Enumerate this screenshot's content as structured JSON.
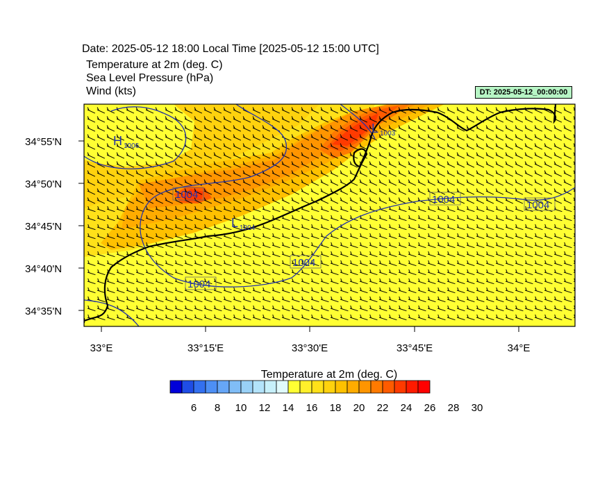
{
  "header": {
    "date_line": "Date: 2025-05-12  18:00 Local Time [2025-05-12  15:00 UTC]",
    "field1": "Temperature at 2m   (deg. C)",
    "field2": "Sea Level Pressure   (hPa)",
    "field3": "Wind   (kts)",
    "dt_badge": "DT: 2025-05-12_00:00:00"
  },
  "map": {
    "lat_labels": [
      "34°55'N",
      "34°50'N",
      "34°45'N",
      "34°40'N",
      "34°35'N"
    ],
    "lon_labels": [
      "33°E",
      "33°15'E",
      "33°30'E",
      "33°45'E",
      "34°E"
    ],
    "pressure_systems": [
      {
        "type": "H",
        "value": "1006"
      },
      {
        "type": "L",
        "value": "1003"
      },
      {
        "type": "L",
        "value": "1004"
      }
    ],
    "isobar_labels": [
      "1004",
      "1004",
      "1004",
      "1004",
      "1004"
    ],
    "colors": {
      "coast": "#000000",
      "isobar": "#2233aa",
      "label_box": "#f2e04a"
    }
  },
  "colorbar": {
    "title": "Temperature at 2m  (deg. C)",
    "tick_labels": [
      "6",
      "8",
      "10",
      "12",
      "14",
      "16",
      "18",
      "20",
      "22",
      "24",
      "26",
      "28",
      "30"
    ],
    "colors": [
      "#0000d9",
      "#1f4de6",
      "#3370f0",
      "#4d8ff5",
      "#66a6f7",
      "#80bdf7",
      "#99d1f7",
      "#b3e3fa",
      "#c7f0fa",
      "#e0fafc",
      "#ffff33",
      "#fff02b",
      "#ffe119",
      "#ffd20e",
      "#ffc100",
      "#ffac00",
      "#ff9500",
      "#ff7a00",
      "#ff5b00",
      "#ff3a00",
      "#ff1a00",
      "#ff0000"
    ]
  }
}
